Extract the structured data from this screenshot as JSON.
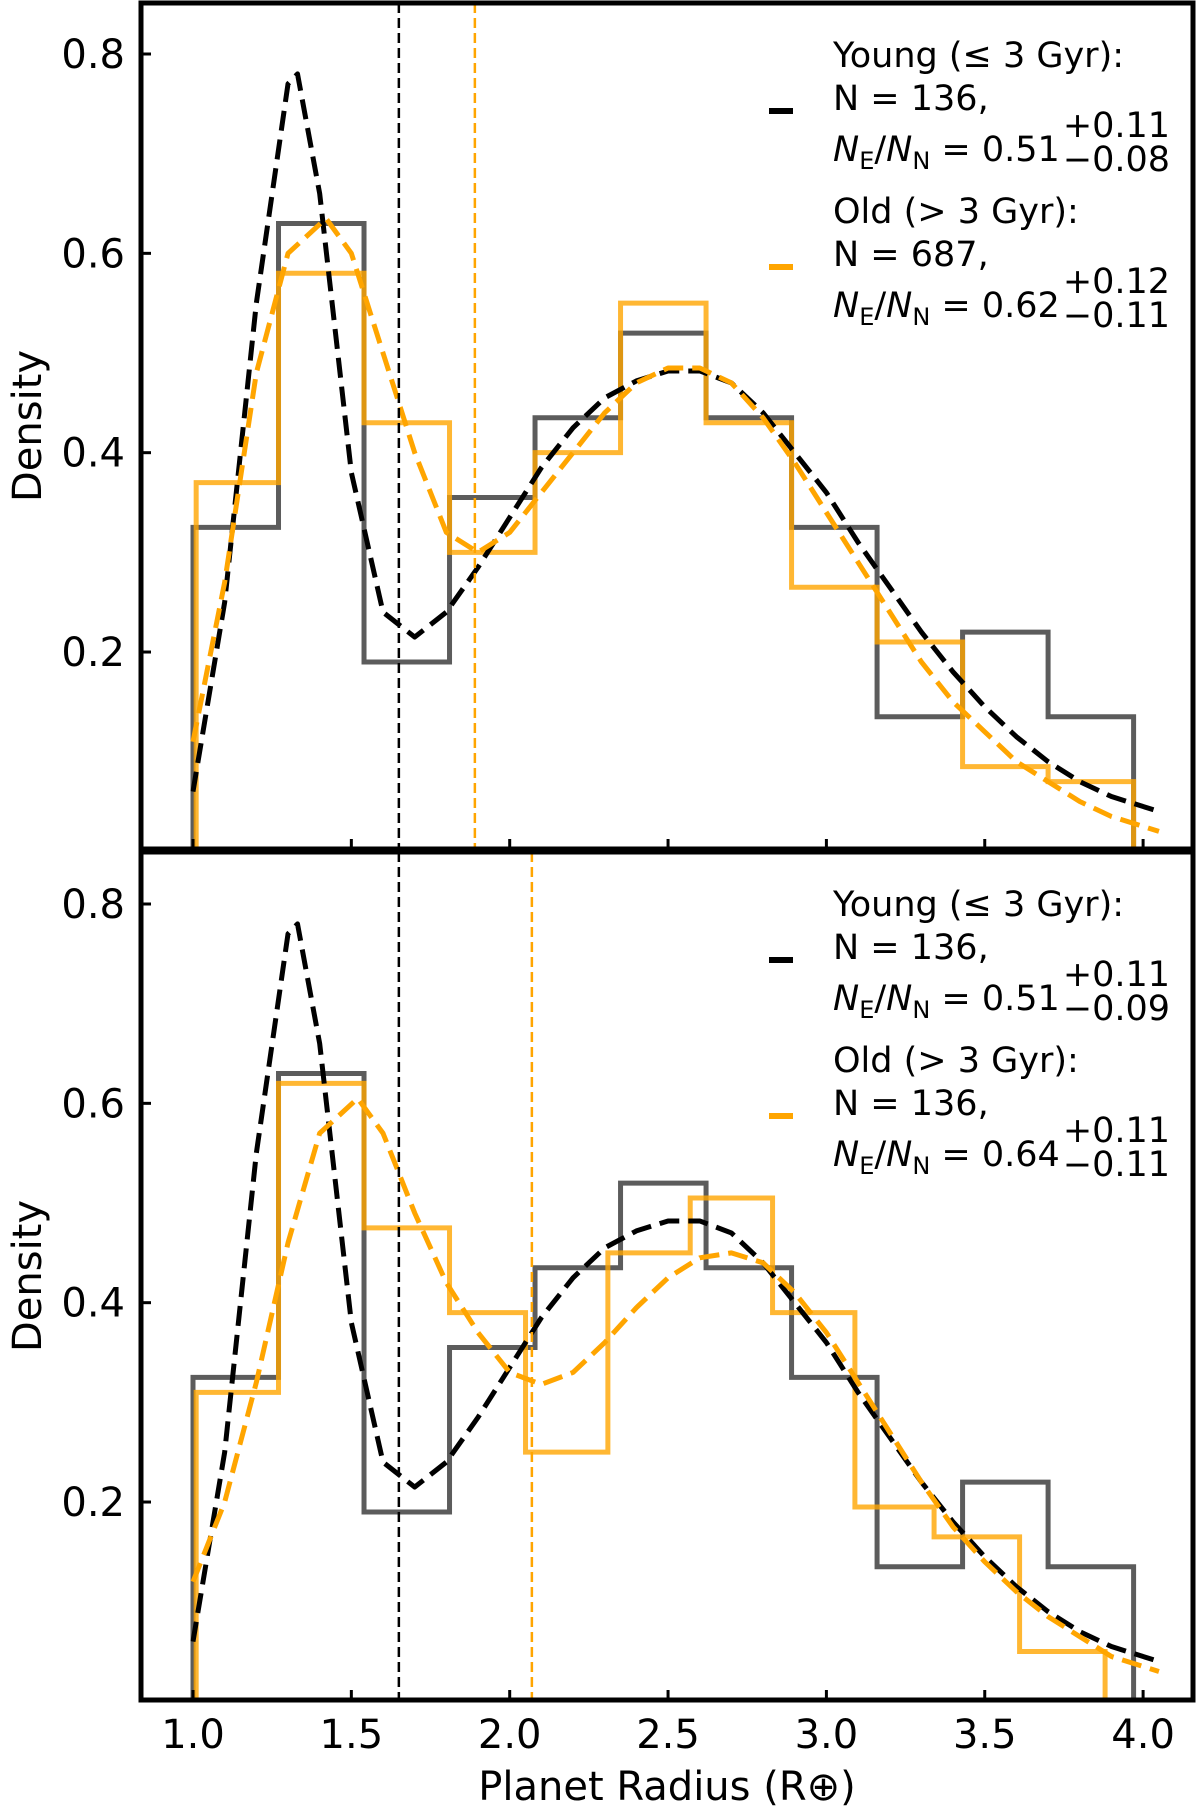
{
  "chart_data": [
    {
      "type": "histogram-kde",
      "panel": "top",
      "xlim": [
        0.85,
        4.08
      ],
      "ylim": [
        0.005,
        0.85
      ],
      "xticks": [
        "1.0",
        "1.5",
        "2.0",
        "2.5",
        "3.0",
        "3.5",
        "4.0"
      ],
      "yticks": [
        "0.2",
        "0.4",
        "0.6",
        "0.8"
      ],
      "xlabel": "",
      "ylabel": "Density",
      "grid": false,
      "legend_position": "top-right",
      "series": [
        {
          "legend_title": "Young (≤ 3 Gyr):",
          "legend_n": "N = 136,",
          "ratio_value": "0.51",
          "ratio_plus": "+0.11",
          "ratio_minus": "−0.08",
          "color": "#000000",
          "hist_color": "#333333",
          "bin_edges": [
            1.0,
            1.27,
            1.54,
            1.81,
            2.08,
            2.35,
            2.62,
            2.89,
            3.16,
            3.43,
            3.7,
            3.97
          ],
          "hist": [
            0.325,
            0.63,
            0.19,
            0.355,
            0.435,
            0.52,
            0.435,
            0.325,
            0.135,
            0.22,
            0.135
          ],
          "kde_x": [
            1.0,
            1.1,
            1.2,
            1.3,
            1.33,
            1.4,
            1.5,
            1.6,
            1.7,
            1.8,
            1.9,
            2.0,
            2.1,
            2.2,
            2.3,
            2.4,
            2.5,
            2.6,
            2.7,
            2.8,
            2.9,
            3.0,
            3.1,
            3.2,
            3.3,
            3.4,
            3.5,
            3.6,
            3.7,
            3.8,
            3.9,
            4.05
          ],
          "kde_y": [
            0.06,
            0.25,
            0.55,
            0.77,
            0.78,
            0.66,
            0.38,
            0.24,
            0.215,
            0.24,
            0.285,
            0.335,
            0.385,
            0.425,
            0.455,
            0.472,
            0.482,
            0.482,
            0.47,
            0.44,
            0.4,
            0.36,
            0.31,
            0.265,
            0.22,
            0.18,
            0.145,
            0.115,
            0.09,
            0.07,
            0.055,
            0.04
          ],
          "threshold": 1.65
        },
        {
          "legend_title": "Old (> 3 Gyr):",
          "legend_n": "N = 687,",
          "ratio_value": "0.62",
          "ratio_plus": "+0.12",
          "ratio_minus": "−0.11",
          "color": "#FFA500",
          "hist_color": "#FFA500",
          "bin_edges": [
            1.01,
            1.27,
            1.54,
            1.81,
            2.08,
            2.35,
            2.62,
            2.89,
            3.16,
            3.43,
            3.7,
            3.97
          ],
          "hist": [
            0.37,
            0.58,
            0.43,
            0.3,
            0.4,
            0.55,
            0.43,
            0.265,
            0.21,
            0.085,
            0.07
          ],
          "kde_x": [
            1.0,
            1.1,
            1.2,
            1.3,
            1.42,
            1.5,
            1.6,
            1.7,
            1.8,
            1.9,
            2.0,
            2.1,
            2.2,
            2.3,
            2.4,
            2.5,
            2.6,
            2.7,
            2.8,
            2.9,
            3.0,
            3.1,
            3.2,
            3.3,
            3.4,
            3.5,
            3.6,
            3.7,
            3.8,
            3.9,
            4.05
          ],
          "kde_y": [
            0.11,
            0.27,
            0.48,
            0.6,
            0.635,
            0.6,
            0.5,
            0.4,
            0.32,
            0.3,
            0.32,
            0.36,
            0.4,
            0.44,
            0.47,
            0.485,
            0.485,
            0.47,
            0.435,
            0.39,
            0.34,
            0.29,
            0.24,
            0.19,
            0.15,
            0.12,
            0.09,
            0.07,
            0.05,
            0.035,
            0.02
          ],
          "threshold": 1.89
        }
      ]
    },
    {
      "type": "histogram-kde",
      "panel": "bottom",
      "xlim": [
        0.85,
        4.08
      ],
      "ylim": [
        0.005,
        0.85
      ],
      "xticks": [
        "1.0",
        "1.5",
        "2.0",
        "2.5",
        "3.0",
        "3.5",
        "4.0"
      ],
      "yticks": [
        "0.2",
        "0.4",
        "0.6",
        "0.8"
      ],
      "xlabel": "Planet Radius (R⊕)",
      "ylabel": "Density",
      "grid": false,
      "legend_position": "top-right",
      "series": [
        {
          "legend_title": "Young (≤ 3 Gyr):",
          "legend_n": "N = 136,",
          "ratio_value": "0.51",
          "ratio_plus": "+0.11",
          "ratio_minus": "−0.09",
          "color": "#000000",
          "hist_color": "#333333",
          "bin_edges": [
            1.0,
            1.27,
            1.54,
            1.81,
            2.08,
            2.35,
            2.62,
            2.89,
            3.16,
            3.43,
            3.7,
            3.97
          ],
          "hist": [
            0.325,
            0.63,
            0.19,
            0.355,
            0.435,
            0.52,
            0.435,
            0.325,
            0.135,
            0.22,
            0.135
          ],
          "kde_x": [
            1.0,
            1.1,
            1.2,
            1.3,
            1.33,
            1.4,
            1.5,
            1.6,
            1.7,
            1.8,
            1.9,
            2.0,
            2.1,
            2.2,
            2.3,
            2.4,
            2.5,
            2.6,
            2.7,
            2.8,
            2.9,
            3.0,
            3.1,
            3.2,
            3.3,
            3.4,
            3.5,
            3.6,
            3.7,
            3.8,
            3.9,
            4.05
          ],
          "kde_y": [
            0.06,
            0.25,
            0.55,
            0.77,
            0.78,
            0.66,
            0.38,
            0.24,
            0.215,
            0.24,
            0.285,
            0.335,
            0.385,
            0.425,
            0.455,
            0.472,
            0.482,
            0.482,
            0.47,
            0.44,
            0.4,
            0.36,
            0.31,
            0.265,
            0.22,
            0.18,
            0.145,
            0.115,
            0.09,
            0.07,
            0.055,
            0.04
          ],
          "threshold": 1.65
        },
        {
          "legend_title": "Old (> 3 Gyr):",
          "legend_n": "N = 136,",
          "ratio_value": "0.64",
          "ratio_plus": "+0.11",
          "ratio_minus": "−0.11",
          "color": "#FFA500",
          "hist_color": "#FFA500",
          "bin_edges": [
            1.01,
            1.27,
            1.54,
            1.81,
            2.05,
            2.31,
            2.57,
            2.83,
            3.09,
            3.34,
            3.61,
            3.88
          ],
          "hist": [
            0.31,
            0.62,
            0.475,
            0.39,
            0.25,
            0.45,
            0.505,
            0.39,
            0.195,
            0.165,
            0.05
          ],
          "kde_x": [
            1.0,
            1.1,
            1.2,
            1.3,
            1.4,
            1.52,
            1.6,
            1.7,
            1.8,
            1.9,
            2.0,
            2.1,
            2.2,
            2.3,
            2.4,
            2.5,
            2.6,
            2.7,
            2.8,
            2.9,
            3.0,
            3.1,
            3.2,
            3.3,
            3.4,
            3.5,
            3.6,
            3.7,
            3.8,
            3.9,
            4.05
          ],
          "kde_y": [
            0.12,
            0.2,
            0.32,
            0.46,
            0.57,
            0.605,
            0.57,
            0.49,
            0.42,
            0.37,
            0.33,
            0.318,
            0.33,
            0.36,
            0.395,
            0.425,
            0.445,
            0.45,
            0.44,
            0.41,
            0.37,
            0.32,
            0.27,
            0.22,
            0.175,
            0.14,
            0.11,
            0.085,
            0.065,
            0.045,
            0.03
          ],
          "threshold": 2.07
        }
      ]
    }
  ],
  "ratio_label": {
    "num": "N",
    "num_sub": "E",
    "den": "N",
    "den_sub": "N"
  }
}
